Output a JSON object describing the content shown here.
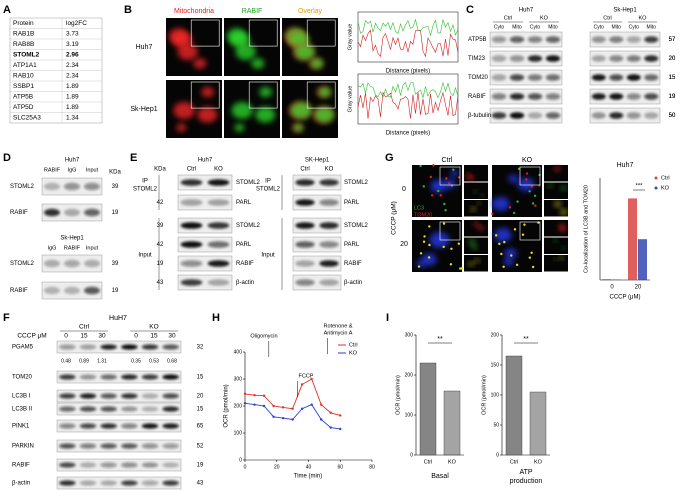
{
  "A": {
    "label": "A",
    "header": [
      "Protein",
      "log2FC"
    ],
    "rows": [
      [
        "RAB1B",
        3.73
      ],
      [
        "RAB8B",
        3.19
      ],
      [
        "STOML2",
        2.96
      ],
      [
        "ATP1A1",
        2.34
      ],
      [
        "RAB10",
        2.34
      ],
      [
        "SSBP1",
        1.89
      ],
      [
        "ATP5B",
        1.89
      ],
      [
        "ATP5D",
        1.89
      ],
      [
        "SLC25A3",
        1.34
      ]
    ],
    "bold_row": 2
  },
  "B": {
    "label": "B",
    "columns": [
      {
        "text": "Mitochondria",
        "color": "#e02020"
      },
      {
        "text": "RABIF",
        "color": "#1fa01f"
      },
      {
        "text": "Overlay",
        "color": "#e8a000"
      }
    ],
    "rows": [
      "Huh7",
      "Sk-Hep1"
    ],
    "plot_y_label": "Gray value",
    "plot_x_label": "Distance (pixels)"
  },
  "C": {
    "label": "C",
    "groups": [
      {
        "cell": "Huh7",
        "conditions": [
          "Ctrl",
          "KO"
        ],
        "fractions": [
          "Cyto",
          "Mito",
          "Cyto",
          "Mito"
        ]
      },
      {
        "cell": "Sk-Hep1",
        "conditions": [
          "Ctrl",
          "KO"
        ],
        "fractions": [
          "Cyto",
          "Mito",
          "Cyto",
          "Mito"
        ]
      }
    ],
    "rows": [
      {
        "protein": "ATP5B",
        "kda": 57
      },
      {
        "protein": "TIM23",
        "kda": 20
      },
      {
        "protein": "TOM20",
        "kda": 15
      },
      {
        "protein": "RABIF",
        "kda": 19
      },
      {
        "protein": "β-tubulin",
        "kda": 50
      }
    ]
  },
  "D": {
    "label": "D",
    "kda_header": "KDa",
    "blots": [
      {
        "cell": "Huh7",
        "lanes": [
          "RABIF",
          "IgG",
          "Input"
        ],
        "rows": [
          {
            "protein": "STOML2",
            "kda": 39
          },
          {
            "protein": "RABIF",
            "kda": 19
          }
        ]
      },
      {
        "cell": "Sk-Hep1",
        "lanes": [
          "IgG",
          "RABIF",
          "Input"
        ],
        "rows": [
          {
            "protein": "STOML2",
            "kda": 39
          },
          {
            "protein": "RABIF",
            "kda": 19
          }
        ]
      }
    ]
  },
  "E": {
    "label": "E",
    "blots": [
      {
        "cell": "Huh7",
        "kda_header": "KDa",
        "lanes": [
          "Ctrl",
          "KO"
        ],
        "groups": [
          [
            "IP",
            "STOML2"
          ],
          [
            "Input"
          ]
        ],
        "rows": [
          {
            "protein": "STOML2"
          },
          {
            "protein": "PARL",
            "kda": 42
          },
          {
            "protein": "STOML2",
            "kda": 39
          },
          {
            "protein": "PARL",
            "kda": 42
          },
          {
            "protein": "RABIF",
            "kda": 19
          },
          {
            "protein": "β-actin",
            "kda": 43
          }
        ]
      },
      {
        "cell": "SK-Hep1",
        "lanes": [
          "Ctrl",
          "KO"
        ],
        "groups": [
          [
            "IP",
            "STOML2"
          ],
          [
            "Input"
          ]
        ],
        "rows": [
          {
            "protein": "STOML2"
          },
          {
            "protein": "PARL"
          },
          {
            "protein": "STOML2"
          },
          {
            "protein": "PARL"
          },
          {
            "protein": "RABIF"
          },
          {
            "protein": "β-actin"
          }
        ]
      }
    ]
  },
  "F": {
    "label": "F",
    "cell": "HuH7",
    "dose_label": "CCCP μM",
    "conditions": [
      "Ctrl",
      "KO"
    ],
    "doses": [
      0,
      15,
      30,
      0,
      15,
      30
    ],
    "rows": [
      {
        "protein": "PGAM5",
        "kda": 32,
        "quant": [
          0.48,
          0.89,
          1.31,
          0.35,
          0.53,
          0.68
        ]
      },
      {
        "protein": "TOM20",
        "kda": 15
      },
      {
        "protein": "LC3B I",
        "kda": 20
      },
      {
        "protein": "LC3B II",
        "kda": 15
      },
      {
        "protein": "PINK1",
        "kda": 65
      },
      {
        "protein": "PARKIN",
        "kda": 52
      },
      {
        "protein": "RABIF",
        "kda": 19
      },
      {
        "protein": "β-actin",
        "kda": 43
      }
    ]
  },
  "G": {
    "label": "G",
    "conditions": [
      "Ctrl",
      "KO"
    ],
    "doses": [
      0,
      20
    ],
    "dose_label": "CCCP (μM)",
    "stains": [
      {
        "text": "LC3",
        "color": "#2db82d"
      },
      {
        "text": "TOM20",
        "color": "#e02020"
      }
    ],
    "chart": {
      "type": "bar",
      "title": "Huh7",
      "y_label": "Co-localization of LC3B and TOM20",
      "x_label": "CCCP (μM)",
      "categories": [
        "0",
        "20"
      ],
      "series": [
        {
          "name": "Ctrl",
          "color": "#d9443f",
          "values": [
            0.5,
            48
          ]
        },
        {
          "name": "KO",
          "color": "#3347b0",
          "values": [
            0.3,
            24
          ]
        }
      ],
      "ylim": [
        0,
        60
      ],
      "annotation": "***"
    }
  },
  "H": {
    "label": "H",
    "chart": {
      "type": "line",
      "x_label": "Time (min)",
      "y_label": "OCR (pmol/min)",
      "x": [
        0,
        6,
        12,
        18,
        24,
        30,
        36,
        42,
        48,
        54,
        60
      ],
      "series": [
        {
          "name": "Ctrl",
          "color": "#e0302b",
          "values": [
            245,
            240,
            238,
            200,
            195,
            190,
            280,
            300,
            205,
            175,
            165
          ]
        },
        {
          "name": "KO",
          "color": "#2a3ed0",
          "values": [
            210,
            205,
            200,
            160,
            155,
            150,
            190,
            205,
            150,
            120,
            115
          ]
        }
      ],
      "xlim": [
        0,
        80
      ],
      "xticks": [
        0,
        20,
        40,
        60,
        80
      ],
      "ylim": [
        0,
        400
      ],
      "yticks": [
        0,
        100,
        200,
        300,
        400
      ],
      "annotations": [
        [
          "Oligomycin"
        ],
        [
          "FCCP"
        ],
        [
          "Rotenone &",
          "Antimycin A"
        ]
      ]
    }
  },
  "I": {
    "label": "I",
    "charts": [
      {
        "type": "bar",
        "title": [
          "Basal"
        ],
        "y_label": "OCR (pmol/min)",
        "categories": [
          "Ctrl",
          "KO"
        ],
        "values": [
          230,
          160
        ],
        "color": "#858585",
        "ylim": [
          0,
          300
        ],
        "yticks": [
          0,
          100,
          200,
          300
        ],
        "annotation": "**"
      },
      {
        "type": "bar",
        "title": [
          "ATP",
          "production"
        ],
        "y_label": "OCR (pmol/min)",
        "categories": [
          "Ctrl",
          "KO"
        ],
        "values": [
          165,
          105
        ],
        "color": "#858585",
        "ylim": [
          0,
          200
        ],
        "yticks": [
          0,
          50,
          100,
          150,
          200
        ],
        "annotation": "**"
      }
    ]
  }
}
